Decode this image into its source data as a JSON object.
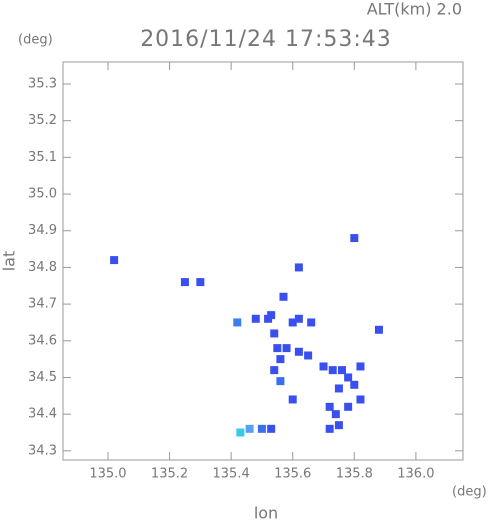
{
  "chart_data": {
    "type": "scatter",
    "title": "2016/11/24 17:53:43",
    "subtitle": "ALT(km) 2.0",
    "y_unit": "(deg)",
    "x_unit": "(deg)",
    "x_label": "lon",
    "y_label": "lat",
    "xlim": [
      134.854,
      136.153
    ],
    "ylim": [
      34.275,
      35.36
    ],
    "xticks": [
      {
        "value": 135,
        "label": "135.0"
      },
      135.2,
      135.4,
      135.6,
      135.8,
      {
        "value": 136,
        "label": "136.0"
      }
    ],
    "yticks": [
      35.3,
      35.2,
      35.1,
      {
        "value": 35,
        "label": "35.0"
      },
      34.9,
      34.8,
      34.7,
      34.6,
      34.5,
      34.4,
      34.3
    ],
    "x": [
      135.02,
      135.25,
      135.3,
      135.42,
      135.48,
      135.52,
      135.54,
      135.55,
      135.56,
      135.58,
      135.54,
      135.56,
      135.6,
      135.62,
      135.66,
      135.62,
      135.65,
      135.7,
      135.73,
      135.76,
      135.78,
      135.8,
      135.82,
      135.75,
      135.72,
      135.74,
      135.78,
      135.82,
      135.75,
      135.72,
      135.8,
      135.88,
      135.6,
      135.43,
      135.46,
      135.5,
      135.53,
      135.53,
      135.57,
      135.62
    ],
    "y": [
      34.82,
      34.76,
      34.76,
      34.65,
      34.66,
      34.66,
      34.62,
      34.58,
      34.55,
      34.58,
      34.52,
      34.49,
      34.65,
      34.66,
      34.65,
      34.57,
      34.56,
      34.53,
      34.52,
      34.52,
      34.5,
      34.48,
      34.53,
      34.47,
      34.42,
      34.4,
      34.42,
      34.44,
      34.37,
      34.36,
      34.88,
      34.63,
      34.44,
      34.35,
      34.36,
      34.36,
      34.36,
      34.67,
      34.72,
      34.8
    ],
    "colors": [
      "#3a4ff0",
      "#3a4ff0",
      "#3a4ff0",
      "#3a7ff0",
      "#3a4ff0",
      "#3a4ff0",
      "#3a4ff0",
      "#3a4ff0",
      "#3a4ff0",
      "#3a4ff0",
      "#3a4ff0",
      "#3a6ff0",
      "#3a4ff0",
      "#3a4ff0",
      "#3a4ff0",
      "#3a4ff0",
      "#3a4ff0",
      "#3a4ff0",
      "#3a4ff0",
      "#3a4ff0",
      "#3a4ff0",
      "#3a4ff0",
      "#3a4ff0",
      "#3a4ff0",
      "#3a4ff0",
      "#3a4ff0",
      "#3a4ff0",
      "#3a4ff0",
      "#3a4ff0",
      "#3a4ff0",
      "#3a4ff0",
      "#3a4ff0",
      "#3a4ff0",
      "#38c8e8",
      "#5a9ff0",
      "#3a6ff0",
      "#3a4ff0",
      "#3a4ff0",
      "#3a4ff0",
      "#3a4ff0"
    ]
  }
}
